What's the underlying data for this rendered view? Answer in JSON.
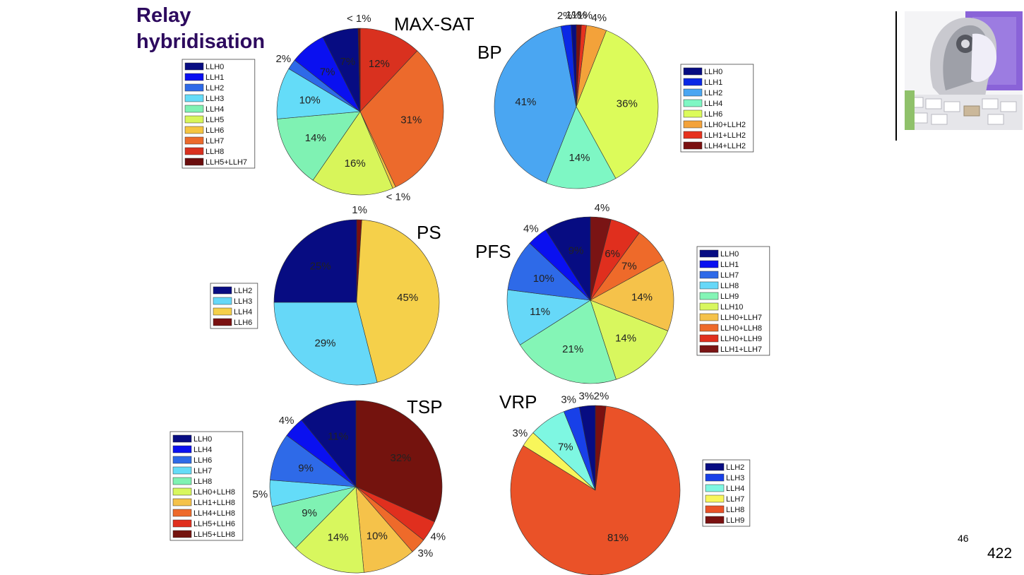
{
  "slide": {
    "title_line1": "Relay",
    "title_line2": "hybridisation",
    "page_small": "46",
    "page_large": "422"
  },
  "chart_data": [
    {
      "type": "pie",
      "title": "MAX-SAT",
      "start_angle": 0,
      "slices": [
        {
          "label": "LLH8",
          "value": 12,
          "text": "12%",
          "color": "#d9311f"
        },
        {
          "label": "LLH7",
          "value": 31,
          "text": "31%",
          "color": "#ec6a2c"
        },
        {
          "label": "LLH6",
          "value": 0.6,
          "text": "< 1%",
          "color": "#f5c542"
        },
        {
          "label": "LLH5",
          "value": 16,
          "text": "16%",
          "color": "#d8f55a"
        },
        {
          "label": "LLH4",
          "value": 14,
          "text": "14%",
          "color": "#7ff2b3"
        },
        {
          "label": "LLH3",
          "value": 10,
          "text": "10%",
          "color": "#64dcf8"
        },
        {
          "label": "LLH2",
          "value": 2,
          "text": "2%",
          "color": "#2e6ae8"
        },
        {
          "label": "LLH1",
          "value": 7,
          "text": "7%",
          "color": "#0a10f0"
        },
        {
          "label": "LLH0",
          "value": 7,
          "text": "7%",
          "color": "#070c82"
        },
        {
          "label": "LLH5+LLH7",
          "value": 0.4,
          "text": "< 1%",
          "color": "#6b0d0d"
        }
      ],
      "legend": [
        "LLH0",
        "LLH1",
        "LLH2",
        "LLH3",
        "LLH4",
        "LLH5",
        "LLH6",
        "LLH7",
        "LLH8",
        "LLH5+LLH7"
      ]
    },
    {
      "type": "pie",
      "title": "BP",
      "start_angle": 0,
      "slices": [
        {
          "label": "LLH4+LLH2",
          "value": 1,
          "text": "1%",
          "color": "#7a1010"
        },
        {
          "label": "LLH1+LLH2",
          "value": 1,
          "text": "1%",
          "color": "#e6321e"
        },
        {
          "label": "LLH0+LLH2",
          "value": 4,
          "text": "4%",
          "color": "#f3a23a"
        },
        {
          "label": "LLH6",
          "value": 36,
          "text": "36%",
          "color": "#dcfb5a"
        },
        {
          "label": "LLH4",
          "value": 14,
          "text": "14%",
          "color": "#7ef7c4"
        },
        {
          "label": "LLH2",
          "value": 41,
          "text": "41%",
          "color": "#4aa6f2"
        },
        {
          "label": "LLH1",
          "value": 2,
          "text": "2%",
          "color": "#0a28e6"
        },
        {
          "label": "LLH0",
          "value": 1,
          "text": "1%",
          "color": "#070c82"
        }
      ],
      "legend": [
        "LLH0",
        "LLH1",
        "LLH2",
        "LLH4",
        "LLH6",
        "LLH0+LLH2",
        "LLH1+LLH2",
        "LLH4+LLH2"
      ]
    },
    {
      "type": "pie",
      "title": "PS",
      "start_angle": 0,
      "slices": [
        {
          "label": "LLH6",
          "value": 1,
          "text": "1%",
          "color": "#7a1010"
        },
        {
          "label": "LLH4",
          "value": 45,
          "text": "45%",
          "color": "#f5d04a"
        },
        {
          "label": "LLH3",
          "value": 29,
          "text": "29%",
          "color": "#66d8f8"
        },
        {
          "label": "LLH2",
          "value": 25,
          "text": "25%",
          "color": "#070c82"
        }
      ],
      "legend": [
        "LLH2",
        "LLH3",
        "LLH4",
        "LLH6"
      ]
    },
    {
      "type": "pie",
      "title": "PFS",
      "start_angle": 0,
      "slices": [
        {
          "label": "LLH1+LLH7",
          "value": 4,
          "text": "4%",
          "color": "#7a1414"
        },
        {
          "label": "LLH0+LLH9",
          "value": 6,
          "text": "6%",
          "color": "#e02f1e"
        },
        {
          "label": "LLH0+LLH8",
          "value": 7,
          "text": "7%",
          "color": "#ee6a2a"
        },
        {
          "label": "LLH0+LLH7",
          "value": 14,
          "text": "14%",
          "color": "#f5c24a"
        },
        {
          "label": "LLH10",
          "value": 14,
          "text": "14%",
          "color": "#d8f75e"
        },
        {
          "label": "LLH9",
          "value": 21,
          "text": "21%",
          "color": "#84f5b6"
        },
        {
          "label": "LLH8",
          "value": 11,
          "text": "11%",
          "color": "#66d8f8"
        },
        {
          "label": "LLH7",
          "value": 10,
          "text": "10%",
          "color": "#2e6ae8"
        },
        {
          "label": "LLH1",
          "value": 4,
          "text": "4%",
          "color": "#0a10f0"
        },
        {
          "label": "LLH0",
          "value": 9,
          "text": "9%",
          "color": "#070c82"
        }
      ],
      "legend": [
        "LLH0",
        "LLH1",
        "LLH7",
        "LLH8",
        "LLH9",
        "LLH10",
        "LLH0+LLH7",
        "LLH0+LLH8",
        "LLH0+LLH9",
        "LLH1+LLH7"
      ]
    },
    {
      "type": "pie",
      "title": "TSP",
      "start_angle": 0,
      "slices": [
        {
          "label": "LLH5+LLH8",
          "value": 32,
          "text": "32%",
          "color": "#74130e"
        },
        {
          "label": "LLH5+LLH6",
          "value": 4,
          "text": "4%",
          "color": "#e02f1e"
        },
        {
          "label": "LLH4+LLH8",
          "value": 3,
          "text": "3%",
          "color": "#ee6a2a"
        },
        {
          "label": "LLH1+LLH8",
          "value": 10,
          "text": "10%",
          "color": "#f5c24a"
        },
        {
          "label": "LLH0+LLH8",
          "value": 14,
          "text": "14%",
          "color": "#d8f75e"
        },
        {
          "label": "LLH8",
          "value": 9,
          "text": "9%",
          "color": "#7ff2b3"
        },
        {
          "label": "LLH7",
          "value": 5,
          "text": "5%",
          "color": "#64dcf8"
        },
        {
          "label": "LLH6",
          "value": 9,
          "text": "9%",
          "color": "#2e6ae8"
        },
        {
          "label": "LLH4",
          "value": 4,
          "text": "4%",
          "color": "#0a10f0"
        },
        {
          "label": "LLH0",
          "value": 11,
          "text": "11%",
          "color": "#070c82"
        }
      ],
      "legend": [
        "LLH0",
        "LLH4",
        "LLH6",
        "LLH7",
        "LLH8",
        "LLH0+LLH8",
        "LLH1+LLH8",
        "LLH4+LLH8",
        "LLH5+LLH6",
        "LLH5+LLH8"
      ]
    },
    {
      "type": "pie",
      "title": "VRP",
      "start_angle": 0,
      "slices": [
        {
          "label": "LLH9",
          "value": 2,
          "text": "2%",
          "color": "#7a1010"
        },
        {
          "label": "LLH8",
          "value": 81,
          "text": "81%",
          "color": "#ea5228"
        },
        {
          "label": "LLH7",
          "value": 3,
          "text": "3%",
          "color": "#f8f65a"
        },
        {
          "label": "LLH4",
          "value": 7,
          "text": "7%",
          "color": "#7ef7e2"
        },
        {
          "label": "LLH3",
          "value": 3,
          "text": "3%",
          "color": "#1840e8"
        },
        {
          "label": "LLH2",
          "value": 3,
          "text": "3%",
          "color": "#070c82"
        }
      ],
      "legend": [
        "LLH2",
        "LLH3",
        "LLH4",
        "LLH7",
        "LLH8",
        "LLH9"
      ]
    }
  ]
}
